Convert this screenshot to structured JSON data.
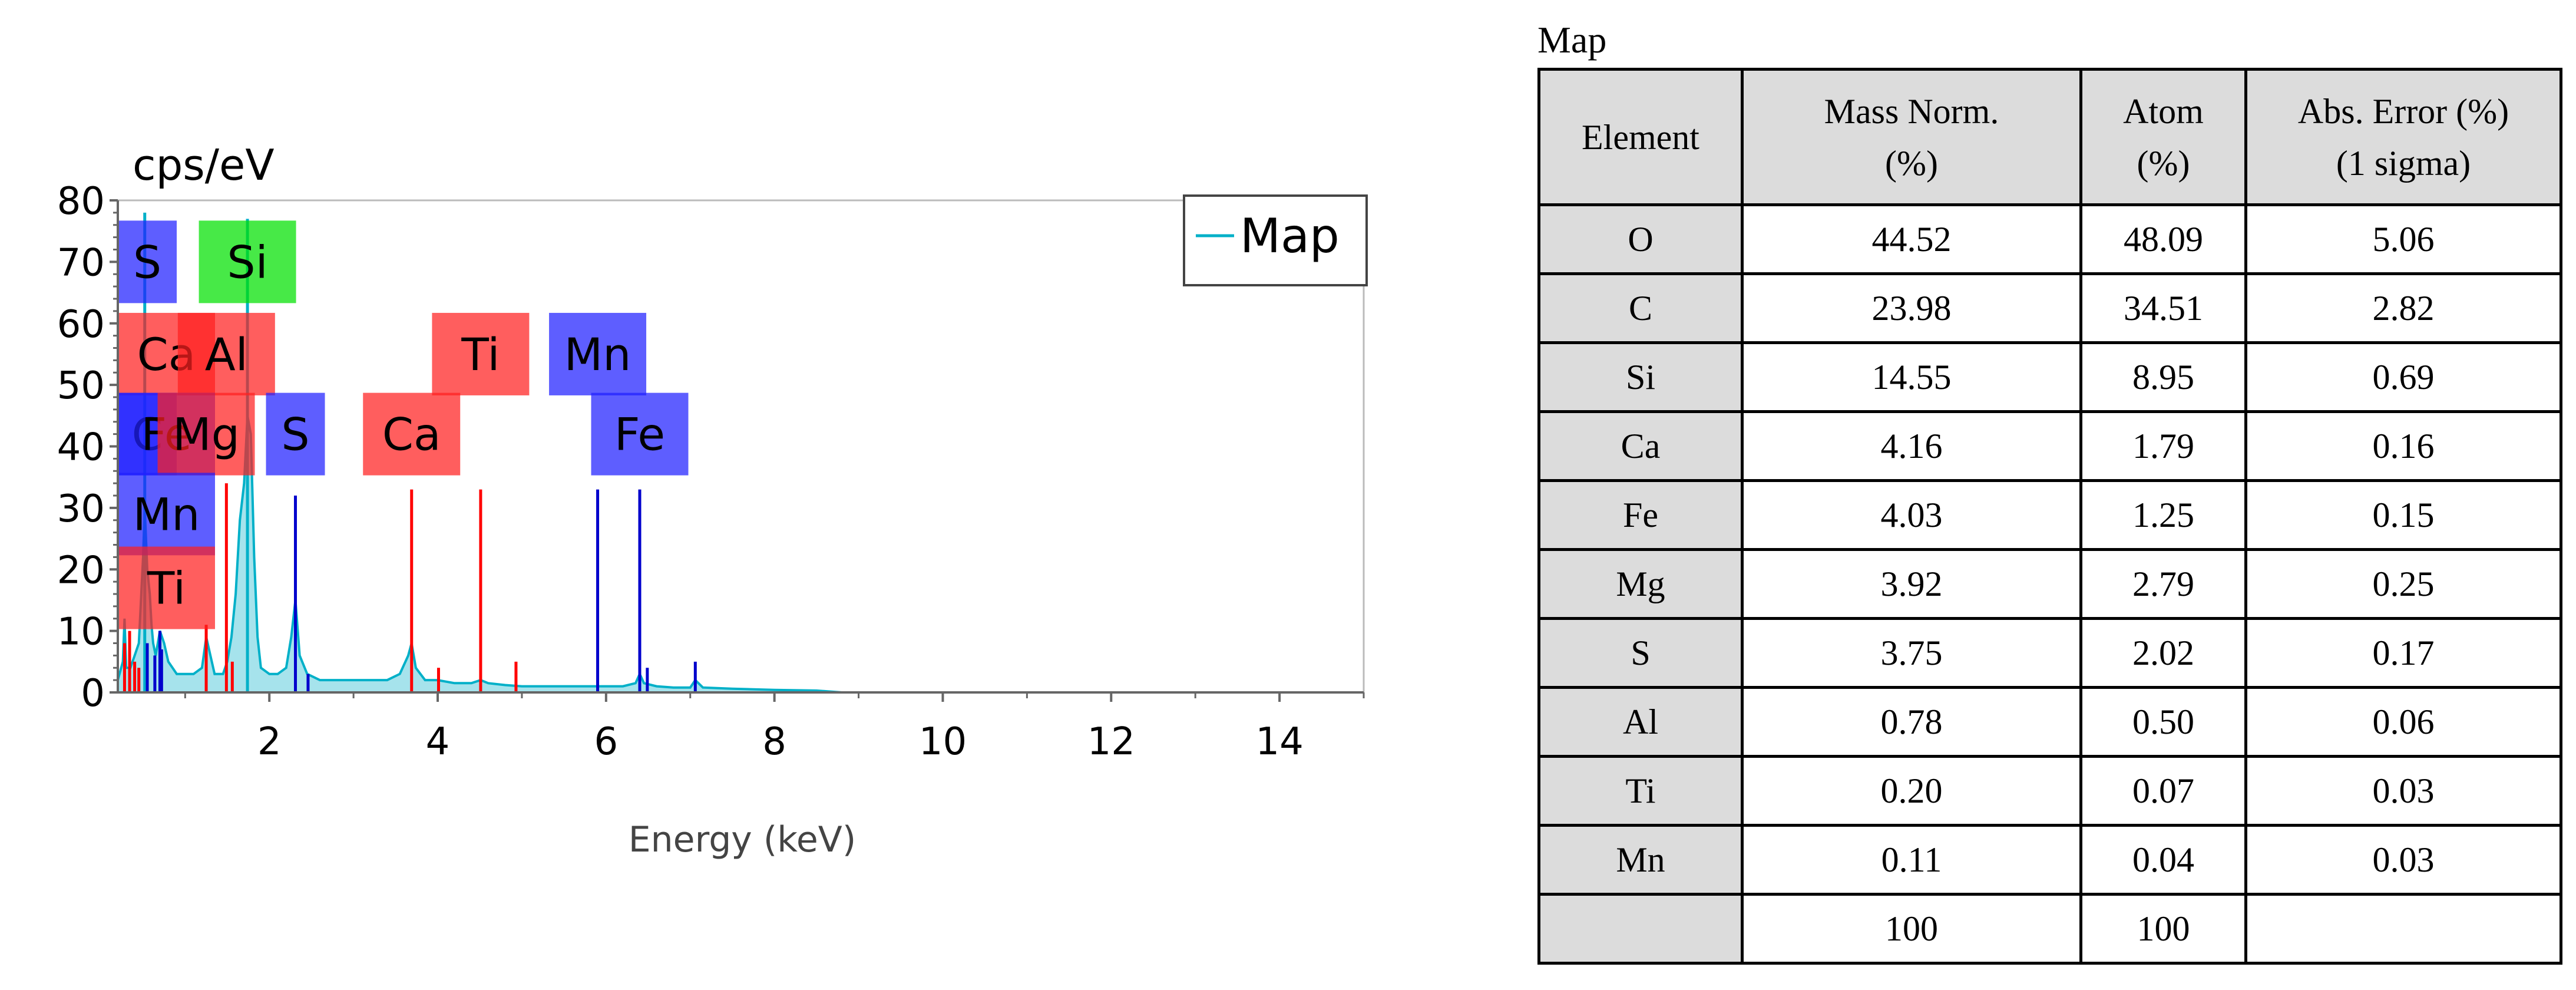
{
  "chart_data": {
    "type": "line",
    "ylabel": "cps/eV",
    "xlabel": "Energy (keV)",
    "xlim": [
      0.2,
      15
    ],
    "ylim": [
      0,
      80
    ],
    "x_ticks": [
      2,
      4,
      6,
      8,
      10,
      12,
      14
    ],
    "y_ticks": [
      0,
      10,
      20,
      30,
      40,
      50,
      60,
      70,
      80
    ],
    "legend": {
      "position": "top-right",
      "entries": [
        "Map"
      ]
    },
    "series": [
      {
        "name": "Map",
        "color": "#00b0c8",
        "x": [
          0.2,
          0.26,
          0.28,
          0.3,
          0.35,
          0.4,
          0.45,
          0.5,
          0.52,
          0.55,
          0.58,
          0.6,
          0.62,
          0.65,
          0.7,
          0.75,
          0.8,
          0.85,
          0.9,
          1.0,
          1.1,
          1.2,
          1.25,
          1.3,
          1.35,
          1.4,
          1.45,
          1.5,
          1.55,
          1.6,
          1.65,
          1.7,
          1.74,
          1.78,
          1.82,
          1.86,
          1.9,
          2.0,
          2.1,
          2.2,
          2.26,
          2.31,
          2.36,
          2.45,
          2.6,
          2.8,
          3.0,
          3.2,
          3.4,
          3.55,
          3.65,
          3.69,
          3.74,
          3.85,
          4.0,
          4.2,
          4.4,
          4.51,
          4.6,
          4.8,
          5.0,
          5.2,
          5.5,
          5.9,
          6.2,
          6.35,
          6.4,
          6.45,
          6.6,
          6.8,
          7.0,
          7.06,
          7.15,
          7.5,
          8.0,
          8.5,
          8.8
        ],
        "values": [
          2,
          5,
          12,
          4,
          4,
          6,
          8,
          22,
          30,
          20,
          16,
          11,
          8,
          6,
          10,
          8,
          5,
          4,
          3,
          3,
          3,
          4,
          9,
          6,
          3,
          3,
          3,
          5,
          9,
          16,
          28,
          34,
          45,
          42,
          22,
          9,
          4,
          3,
          3,
          4,
          9,
          15,
          6,
          3,
          2,
          2,
          2,
          2,
          2,
          3,
          6,
          8,
          4,
          2,
          2,
          1.5,
          1.5,
          2,
          1.5,
          1.2,
          1,
          1,
          1,
          1,
          1,
          1.5,
          3,
          1.5,
          1,
          0.8,
          0.8,
          2,
          0.8,
          0.6,
          0.4,
          0.3,
          0
        ]
      }
    ],
    "peak_lines": [
      {
        "energy": 0.28,
        "height": 8,
        "color": "#ff0000"
      },
      {
        "energy": 0.34,
        "height": 10,
        "color": "#ff0000"
      },
      {
        "energy": 0.4,
        "height": 5,
        "color": "#ff0000"
      },
      {
        "energy": 0.45,
        "height": 4,
        "color": "#ff0000"
      },
      {
        "energy": 0.52,
        "height": 78,
        "color": "#00b0c8"
      },
      {
        "energy": 0.55,
        "height": 8,
        "color": "#0000cc"
      },
      {
        "energy": 0.64,
        "height": 6,
        "color": "#0000cc"
      },
      {
        "energy": 0.7,
        "height": 10,
        "color": "#0000cc"
      },
      {
        "energy": 0.72,
        "height": 7,
        "color": "#0000cc"
      },
      {
        "energy": 1.25,
        "height": 11,
        "color": "#ff0000"
      },
      {
        "energy": 1.49,
        "height": 34,
        "color": "#ff0000"
      },
      {
        "energy": 1.56,
        "height": 5,
        "color": "#ff0000"
      },
      {
        "energy": 1.74,
        "height": 77,
        "color": "#00b0c8"
      },
      {
        "energy": 2.31,
        "height": 32,
        "color": "#0000cc"
      },
      {
        "energy": 2.46,
        "height": 3,
        "color": "#0000cc"
      },
      {
        "energy": 3.69,
        "height": 33,
        "color": "#ff0000"
      },
      {
        "energy": 4.01,
        "height": 4,
        "color": "#ff0000"
      },
      {
        "energy": 4.51,
        "height": 33,
        "color": "#ff0000"
      },
      {
        "energy": 4.93,
        "height": 5,
        "color": "#ff0000"
      },
      {
        "energy": 5.9,
        "height": 33,
        "color": "#0000cc"
      },
      {
        "energy": 6.4,
        "height": 33,
        "color": "#0000cc"
      },
      {
        "energy": 6.49,
        "height": 4,
        "color": "#0000cc"
      },
      {
        "energy": 7.06,
        "height": 5,
        "color": "#0000cc"
      }
    ],
    "element_labels": [
      {
        "text": "S",
        "energy": 0.45,
        "level": 70,
        "color": "#2020ff"
      },
      {
        "text": "Si",
        "energy": 1.74,
        "level": 70,
        "color": "#00e000"
      },
      {
        "text": "Ca",
        "energy": 0.34,
        "level": 55,
        "color": "#ff2020"
      },
      {
        "text": "Al",
        "energy": 1.49,
        "level": 55,
        "color": "#ff2020"
      },
      {
        "text": "Ti",
        "energy": 4.51,
        "level": 55,
        "color": "#ff2020"
      },
      {
        "text": "Mn",
        "energy": 5.9,
        "level": 55,
        "color": "#2020ff"
      },
      {
        "text": "C",
        "energy": 0.28,
        "level": 42,
        "color": "#2020ff"
      },
      {
        "text": "Fe",
        "energy": 0.7,
        "level": 42,
        "color": "#2020ff"
      },
      {
        "text": "Mg",
        "energy": 1.25,
        "level": 42,
        "color": "#ff2020"
      },
      {
        "text": "S",
        "energy": 2.31,
        "level": 42,
        "color": "#2020ff"
      },
      {
        "text": "Ca",
        "energy": 3.69,
        "level": 42,
        "color": "#ff2020"
      },
      {
        "text": "Fe",
        "energy": 6.4,
        "level": 42,
        "color": "#2020ff"
      },
      {
        "text": "Mn",
        "energy": 0.64,
        "level": 29,
        "color": "#2020ff"
      },
      {
        "text": "Ti",
        "energy": 0.45,
        "level": 17,
        "color": "#ff2020"
      }
    ]
  },
  "table": {
    "caption": "Map",
    "headers": {
      "element": "Element",
      "mass_l1": "Mass Norm.",
      "mass_l2": "(%)",
      "atom_l1": "Atom",
      "atom_l2": "(%)",
      "err_l1": "Abs. Error (%)",
      "err_l2": "(1 sigma)"
    },
    "rows": [
      {
        "element": "O",
        "mass": "44.52",
        "atom": "48.09",
        "error": "5.06"
      },
      {
        "element": "C",
        "mass": "23.98",
        "atom": "34.51",
        "error": "2.82"
      },
      {
        "element": "Si",
        "mass": "14.55",
        "atom": "8.95",
        "error": "0.69"
      },
      {
        "element": "Ca",
        "mass": "4.16",
        "atom": "1.79",
        "error": "0.16"
      },
      {
        "element": "Fe",
        "mass": "4.03",
        "atom": "1.25",
        "error": "0.15"
      },
      {
        "element": "Mg",
        "mass": "3.92",
        "atom": "2.79",
        "error": "0.25"
      },
      {
        "element": "S",
        "mass": "3.75",
        "atom": "2.02",
        "error": "0.17"
      },
      {
        "element": "Al",
        "mass": "0.78",
        "atom": "0.50",
        "error": "0.06"
      },
      {
        "element": "Ti",
        "mass": "0.20",
        "atom": "0.07",
        "error": "0.03"
      },
      {
        "element": "Mn",
        "mass": "0.11",
        "atom": "0.04",
        "error": "0.03"
      }
    ],
    "total": {
      "element": "",
      "mass": "100",
      "atom": "100",
      "error": ""
    }
  }
}
